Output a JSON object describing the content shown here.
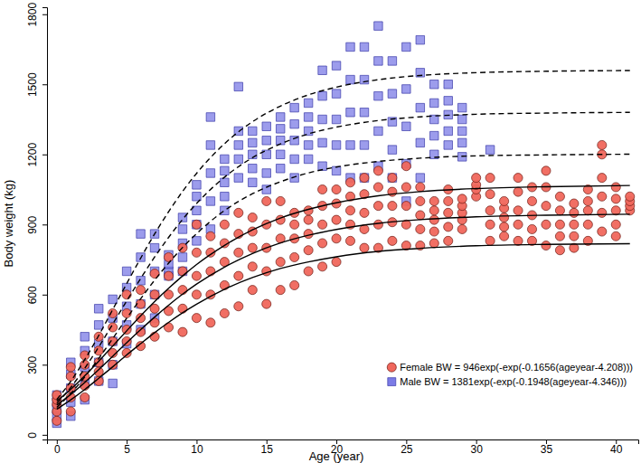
{
  "chart_data": {
    "type": "scatter",
    "x_label": "Age (year)",
    "y_label": "Body weight (kg)",
    "xlim": [
      -0.7,
      41.6
    ],
    "xticks": [
      0,
      5,
      10,
      15,
      20,
      25,
      30,
      35,
      40
    ],
    "ylim": [
      -20,
      1830
    ],
    "yticks": [
      0,
      300,
      600,
      900,
      1200,
      1500,
      1800
    ],
    "grid": false,
    "legend": "lower right",
    "series": [
      {
        "name": "Female BW = 946exp(-exp(-0.1656(ageyear-4.208)))",
        "type": "scatter",
        "marker": "circle",
        "color": "#f0675c",
        "x": [
          0,
          0,
          0,
          0,
          0,
          1,
          1,
          1,
          1,
          1,
          2,
          2,
          2,
          2,
          2,
          3,
          3,
          3,
          3,
          3,
          4,
          4,
          4,
          4,
          4,
          5,
          5,
          5,
          5,
          5,
          6,
          6,
          6,
          6,
          6,
          7,
          7,
          7,
          7,
          7,
          8,
          8,
          8,
          8,
          8,
          9,
          9,
          9,
          9,
          9,
          10,
          10,
          10,
          10,
          10,
          11,
          11,
          11,
          11,
          11,
          12,
          12,
          12,
          12,
          12,
          13,
          13,
          13,
          13,
          13,
          14,
          14,
          14,
          14,
          14,
          15,
          15,
          15,
          15,
          15,
          16,
          16,
          16,
          16,
          16,
          17,
          17,
          17,
          17,
          17,
          18,
          18,
          18,
          18,
          18,
          19,
          19,
          19,
          19,
          19,
          20,
          20,
          20,
          20,
          20,
          21,
          21,
          21,
          21,
          21,
          22,
          22,
          22,
          22,
          22,
          23,
          23,
          23,
          23,
          23,
          24,
          24,
          24,
          24,
          24,
          25,
          25,
          25,
          25,
          25,
          26,
          26,
          26,
          26,
          26,
          27,
          27,
          27,
          27,
          27,
          28,
          28,
          28,
          28,
          28,
          29,
          29,
          29,
          29,
          29,
          30,
          30,
          30,
          30,
          31,
          31,
          31,
          31,
          31,
          32,
          32,
          32,
          32,
          32,
          33,
          33,
          33,
          33,
          33,
          34,
          34,
          34,
          34,
          34,
          35,
          35,
          35,
          35,
          35,
          36,
          36,
          36,
          36,
          36,
          37,
          37,
          37,
          37,
          37,
          38,
          38,
          38,
          38,
          38,
          39,
          39,
          39,
          39,
          39,
          39,
          40,
          40,
          40,
          40,
          40,
          41,
          41,
          41,
          41
        ],
        "values": [
          60,
          100,
          130,
          150,
          170,
          100,
          160,
          200,
          250,
          290,
          160,
          210,
          250,
          300,
          340,
          230,
          270,
          310,
          360,
          420,
          300,
          350,
          400,
          460,
          520,
          350,
          400,
          450,
          520,
          600,
          380,
          440,
          500,
          560,
          620,
          420,
          480,
          540,
          600,
          690,
          460,
          530,
          600,
          680,
          760,
          440,
          540,
          620,
          700,
          800,
          500,
          600,
          680,
          780,
          900,
          480,
          600,
          700,
          780,
          850,
          520,
          640,
          740,
          820,
          900,
          550,
          680,
          780,
          860,
          950,
          620,
          720,
          800,
          870,
          930,
          560,
          700,
          800,
          900,
          1000,
          620,
          740,
          840,
          920,
          1000,
          640,
          760,
          840,
          900,
          950,
          700,
          790,
          860,
          920,
          960,
          720,
          820,
          900,
          980,
          1050,
          740,
          840,
          920,
          990,
          1050,
          830,
          900,
          960,
          1020,
          1080,
          800,
          880,
          950,
          1030,
          1100,
          800,
          900,
          980,
          1060,
          1130,
          830,
          910,
          980,
          1040,
          1100,
          810,
          900,
          980,
          1060,
          1150,
          810,
          880,
          940,
          1000,
          1060,
          820,
          870,
          920,
          960,
          1000,
          830,
          890,
          950,
          1000,
          1050,
          880,
          920,
          950,
          980,
          1010,
          1020,
          1050,
          1070,
          1100,
          830,
          900,
          960,
          1030,
          1100,
          850,
          890,
          930,
          970,
          1000,
          830,
          900,
          960,
          1040,
          1100,
          830,
          880,
          940,
          1000,
          1060,
          810,
          900,
          980,
          1060,
          1130,
          790,
          850,
          900,
          960,
          1020,
          800,
          850,
          900,
          950,
          990,
          830,
          900,
          960,
          1000,
          1050,
          870,
          950,
          1020,
          1100,
          1200,
          1240,
          850,
          900,
          960,
          1010,
          1060,
          960,
          980,
          1000,
          1020
        ]
      },
      {
        "name": "Male BW = 1381exp(-exp(-0.1948(ageyear-4.346)))",
        "type": "scatter",
        "marker": "square",
        "color": "#7b7be6",
        "x": [
          0,
          0,
          0,
          0,
          0,
          1,
          1,
          1,
          1,
          1,
          2,
          2,
          2,
          2,
          2,
          3,
          3,
          3,
          3,
          3,
          4,
          4,
          4,
          4,
          4,
          5,
          5,
          5,
          5,
          5,
          6,
          6,
          6,
          6,
          6,
          7,
          7,
          7,
          7,
          7,
          8,
          8,
          8,
          8,
          9,
          9,
          9,
          9,
          9,
          10,
          10,
          10,
          10,
          10,
          11,
          11,
          11,
          11,
          11,
          12,
          12,
          12,
          12,
          12,
          13,
          13,
          13,
          13,
          13,
          14,
          14,
          14,
          14,
          14,
          15,
          15,
          15,
          15,
          15,
          16,
          16,
          16,
          16,
          16,
          17,
          17,
          17,
          17,
          17,
          18,
          18,
          18,
          18,
          18,
          19,
          19,
          19,
          19,
          19,
          20,
          20,
          20,
          20,
          20,
          21,
          21,
          21,
          21,
          21,
          22,
          22,
          22,
          22,
          22,
          23,
          23,
          23,
          23,
          23,
          24,
          24,
          24,
          24,
          24,
          25,
          25,
          25,
          25,
          25,
          26,
          26,
          26,
          26,
          26,
          27,
          27,
          27,
          27,
          27,
          28,
          28,
          28,
          28,
          28,
          29,
          29,
          29,
          29,
          29,
          31
        ],
        "values": [
          50,
          80,
          110,
          140,
          170,
          80,
          140,
          200,
          260,
          310,
          150,
          220,
          290,
          360,
          420,
          230,
          310,
          390,
          470,
          540,
          220,
          300,
          400,
          500,
          580,
          390,
          470,
          550,
          630,
          700,
          450,
          560,
          660,
          760,
          860,
          500,
          600,
          700,
          800,
          860,
          680,
          700,
          730,
          770,
          700,
          760,
          820,
          880,
          930,
          830,
          900,
          960,
          1020,
          1070,
          880,
          1000,
          1120,
          1240,
          1360,
          960,
          1020,
          1080,
          1130,
          1180,
          1100,
          1180,
          1240,
          1300,
          1490,
          1080,
          1140,
          1200,
          1250,
          1300,
          1050,
          1120,
          1200,
          1260,
          1320,
          1140,
          1200,
          1260,
          1310,
          1360,
          1100,
          1180,
          1260,
          1330,
          1400,
          1180,
          1240,
          1300,
          1360,
          1420,
          1150,
          1250,
          1350,
          1450,
          1560,
          1130,
          1240,
          1350,
          1460,
          1580,
          1100,
          1240,
          1380,
          1520,
          1660,
          1100,
          1240,
          1380,
          1520,
          1660,
          1150,
          1300,
          1450,
          1600,
          1750,
          1100,
          1220,
          1340,
          1460,
          1600,
          1000,
          1160,
          1320,
          1480,
          1660,
          1100,
          1250,
          1400,
          1550,
          1690,
          1200,
          1280,
          1350,
          1420,
          1500,
          1240,
          1300,
          1370,
          1430,
          1500,
          1190,
          1250,
          1300,
          1350,
          1400,
          1220
        ]
      },
      {
        "type": "line",
        "line_style": "dashed",
        "color": "#000000",
        "x": [
          0,
          1,
          2,
          3,
          4,
          5,
          6,
          7,
          8,
          9,
          10,
          12,
          14,
          16,
          18,
          20,
          23,
          26,
          30,
          35,
          41
        ],
        "values": [
          151,
          229,
          322,
          425,
          536,
          647,
          756,
          860,
          955,
          1042,
          1119,
          1246,
          1340,
          1407,
          1455,
          1488,
          1520,
          1538,
          1550,
          1556,
          1559
        ]
      },
      {
        "type": "line",
        "line_style": "dashed",
        "color": "#000000",
        "x": [
          0,
          1,
          2,
          3,
          4,
          5,
          6,
          7,
          8,
          9,
          10,
          12,
          14,
          16,
          18,
          20,
          23,
          26,
          30,
          35,
          41
        ],
        "values": [
          134,
          203,
          285,
          376,
          474,
          573,
          669,
          761,
          845,
          922,
          990,
          1103,
          1186,
          1245,
          1288,
          1317,
          1345,
          1361,
          1372,
          1377,
          1380
        ]
      },
      {
        "type": "line",
        "line_style": "dashed",
        "color": "#000000",
        "x": [
          0,
          1,
          2,
          3,
          4,
          5,
          6,
          7,
          8,
          9,
          10,
          12,
          14,
          16,
          18,
          20,
          23,
          26,
          30,
          35,
          41
        ],
        "values": [
          117,
          177,
          248,
          327,
          412,
          499,
          582,
          662,
          735,
          802,
          861,
          960,
          1032,
          1083,
          1121,
          1146,
          1170,
          1184,
          1194,
          1198,
          1201
        ]
      },
      {
        "type": "line",
        "line_style": "solid",
        "color": "#000000",
        "x": [
          0,
          1,
          2,
          3,
          4,
          5,
          6,
          7,
          8,
          9,
          10,
          12,
          14,
          16,
          18,
          20,
          23,
          26,
          30,
          35,
          41
        ],
        "values": [
          144,
          195,
          253,
          315,
          380,
          445,
          509,
          570,
          627,
          680,
          729,
          811,
          877,
          928,
          965,
          993,
          1023,
          1041,
          1054,
          1062,
          1067
        ]
      },
      {
        "type": "line",
        "line_style": "solid",
        "color": "#000000",
        "x": [
          0,
          1,
          2,
          3,
          4,
          5,
          6,
          7,
          8,
          9,
          10,
          12,
          14,
          16,
          18,
          20,
          23,
          26,
          30,
          35,
          41
        ],
        "values": [
          127,
          173,
          224,
          279,
          336,
          394,
          450,
          504,
          555,
          602,
          645,
          718,
          776,
          821,
          854,
          879,
          905,
          921,
          933,
          940,
          944
        ]
      },
      {
        "type": "line",
        "line_style": "solid",
        "color": "#000000",
        "x": [
          0,
          1,
          2,
          3,
          4,
          5,
          6,
          7,
          8,
          9,
          10,
          12,
          14,
          16,
          18,
          20,
          23,
          26,
          30,
          35,
          41
        ],
        "values": [
          110,
          150,
          194,
          242,
          291,
          342,
          390,
          437,
          481,
          522,
          559,
          623,
          673,
          712,
          740,
          762,
          785,
          798,
          809,
          815,
          818
        ]
      }
    ]
  }
}
